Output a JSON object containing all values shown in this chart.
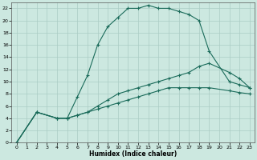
{
  "xlabel": "Humidex (Indice chaleur)",
  "bg_color": "#cce8e0",
  "line_color": "#1a6b5a",
  "grid_color": "#aaccc4",
  "xlim": [
    -0.5,
    23.5
  ],
  "ylim": [
    0,
    23
  ],
  "xticks": [
    0,
    1,
    2,
    3,
    4,
    5,
    6,
    7,
    8,
    9,
    10,
    11,
    12,
    13,
    14,
    15,
    16,
    17,
    18,
    19,
    20,
    21,
    22,
    23
  ],
  "yticks": [
    0,
    2,
    4,
    6,
    8,
    10,
    12,
    14,
    16,
    18,
    20,
    22
  ],
  "line1_x": [
    0,
    2,
    4,
    5,
    6,
    7,
    8,
    9,
    10,
    11,
    12,
    13,
    14,
    15,
    16,
    17,
    18,
    19,
    21,
    22,
    23
  ],
  "line1_y": [
    0,
    5,
    4,
    4,
    7.5,
    11,
    16,
    19,
    20.5,
    22,
    22,
    22.5,
    22,
    22,
    21.5,
    21,
    20,
    15,
    10,
    9.5,
    9
  ],
  "line2_x": [
    0,
    2,
    4,
    5,
    6,
    7,
    8,
    9,
    10,
    11,
    12,
    13,
    14,
    15,
    16,
    17,
    18,
    19,
    21,
    22,
    23
  ],
  "line2_y": [
    0,
    5,
    4,
    4,
    4.5,
    5,
    6,
    7,
    8,
    8.5,
    9,
    9.5,
    10,
    10.5,
    11,
    11.5,
    12.5,
    13,
    11.5,
    10.5,
    9
  ],
  "line3_x": [
    0,
    2,
    4,
    5,
    6,
    7,
    8,
    9,
    10,
    11,
    12,
    13,
    14,
    15,
    16,
    17,
    18,
    19,
    21,
    22,
    23
  ],
  "line3_y": [
    0,
    5,
    4,
    4,
    4.5,
    5,
    5.5,
    6,
    6.5,
    7,
    7.5,
    8,
    8.5,
    9,
    9,
    9,
    9,
    9,
    8.5,
    8.2,
    8.0
  ]
}
